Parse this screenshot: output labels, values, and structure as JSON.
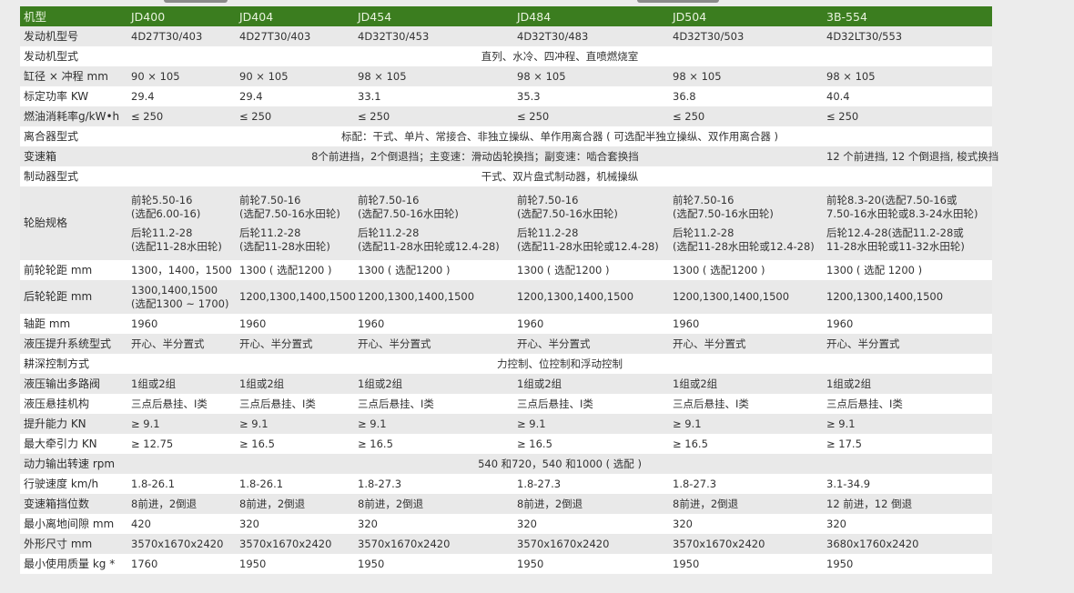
{
  "header": {
    "label": "机型",
    "models": [
      "JD400",
      "JD404",
      "JD454",
      "JD484",
      "JD504",
      "3B-554"
    ]
  },
  "colors": {
    "header_bg": "#3b7d1f",
    "row_alt": "#e9e9e9",
    "row": "#ffffff",
    "page_bg": "#ececec"
  },
  "rows": [
    {
      "label": "发动机型号",
      "cells": [
        {
          "text": "4D27T30/403"
        },
        {
          "text": "4D27T30/403"
        },
        {
          "text": "4D32T30/453"
        },
        {
          "text": "4D32T30/483"
        },
        {
          "text": "4D32T30/503"
        },
        {
          "text": "4D32LT30/553"
        }
      ]
    },
    {
      "label": "发动机型式",
      "cells": [
        {
          "text": "直列、水冷、四冲程、直喷燃烧室",
          "span": 6
        }
      ]
    },
    {
      "label": "缸径 × 冲程 mm",
      "cells": [
        {
          "text": "90 × 105"
        },
        {
          "text": "90 × 105"
        },
        {
          "text": "98 × 105"
        },
        {
          "text": "98 × 105"
        },
        {
          "text": "98 × 105"
        },
        {
          "text": "98 × 105"
        }
      ]
    },
    {
      "label": "标定功率 KW",
      "cells": [
        {
          "text": "29.4"
        },
        {
          "text": "29.4"
        },
        {
          "text": "33.1"
        },
        {
          "text": "35.3"
        },
        {
          "text": "36.8"
        },
        {
          "text": "40.4"
        }
      ]
    },
    {
      "label": "燃油消耗率g/kW•h",
      "cells": [
        {
          "text": "≤ 250"
        },
        {
          "text": "≤ 250"
        },
        {
          "text": "≤ 250"
        },
        {
          "text": "≤ 250"
        },
        {
          "text": "≤ 250"
        },
        {
          "text": "≤ 250"
        }
      ]
    },
    {
      "label": "离合器型式",
      "cells": [
        {
          "text": "标配：干式、单片、常接合、非独立操纵、单作用离合器 ( 可选配半独立操纵、双作用离合器 )",
          "span": 6
        }
      ]
    },
    {
      "label": "变速箱",
      "cells": [
        {
          "text": "8个前进挡，2个倒退挡；主变速：滑动齿轮换挡；副变速：啮合套换挡",
          "span": 5
        },
        {
          "text": "12 个前进挡, 12 个倒退挡, 梭式换挡"
        }
      ]
    },
    {
      "label": "制动器型式",
      "cells": [
        {
          "text": "干式、双片盘式制动器，机械操纵",
          "span": 6
        }
      ]
    },
    {
      "label": "轮胎规格",
      "cells": [
        {
          "lines": [
            "前轮5.50-16",
            "(选配6.00-16)",
            "后轮11.2-28",
            "(选配11-28水田轮)"
          ]
        },
        {
          "lines": [
            "前轮7.50-16",
            "(选配7.50-16水田轮)",
            "后轮11.2-28",
            "(选配11-28水田轮)"
          ]
        },
        {
          "lines": [
            "前轮7.50-16",
            "(选配7.50-16水田轮)",
            "后轮11.2-28",
            "(选配11-28水田轮或12.4-28)"
          ]
        },
        {
          "lines": [
            "前轮7.50-16",
            "(选配7.50-16水田轮)",
            "后轮11.2-28",
            "(选配11-28水田轮或12.4-28)"
          ]
        },
        {
          "lines": [
            "前轮7.50-16",
            "(选配7.50-16水田轮)",
            "后轮11.2-28",
            "(选配11-28水田轮或12.4-28)"
          ]
        },
        {
          "lines": [
            "前轮8.3-20(选配7.50-16或",
            "7.50-16水田轮或8.3-24水田轮)",
            "后轮12.4-28(选配11.2-28或",
            "11-28水田轮或11-32水田轮)"
          ]
        }
      ]
    },
    {
      "label": "前轮轮距 mm",
      "cells": [
        {
          "text": "1300，1400，1500"
        },
        {
          "text": "1300 ( 选配1200 )"
        },
        {
          "text": "1300 ( 选配1200 )"
        },
        {
          "text": "1300 ( 选配1200 )"
        },
        {
          "text": "1300 ( 选配1200 )"
        },
        {
          "text": "1300 ( 选配 1200 )"
        }
      ]
    },
    {
      "label": "后轮轮距 mm",
      "cells": [
        {
          "lines": [
            "1300,1400,1500",
            "(选配1300 ~ 1700)"
          ]
        },
        {
          "text": "1200,1300,1400,1500"
        },
        {
          "text": "1200,1300,1400,1500"
        },
        {
          "text": "1200,1300,1400,1500"
        },
        {
          "text": "1200,1300,1400,1500"
        },
        {
          "text": "1200,1300,1400,1500"
        }
      ]
    },
    {
      "label": "轴距 mm",
      "cells": [
        {
          "text": "1960"
        },
        {
          "text": "1960"
        },
        {
          "text": "1960"
        },
        {
          "text": "1960"
        },
        {
          "text": "1960"
        },
        {
          "text": "1960"
        }
      ]
    },
    {
      "label": "液压提升系统型式",
      "cells": [
        {
          "text": "开心、半分置式"
        },
        {
          "text": "开心、半分置式"
        },
        {
          "text": "开心、半分置式"
        },
        {
          "text": "开心、半分置式"
        },
        {
          "text": "开心、半分置式"
        },
        {
          "text": "开心、半分置式"
        }
      ]
    },
    {
      "label": "耕深控制方式",
      "cells": [
        {
          "text": "力控制、位控制和浮动控制",
          "span": 6
        }
      ]
    },
    {
      "label": "液压输出多路阀",
      "cells": [
        {
          "text": "1组或2组"
        },
        {
          "text": "1组或2组"
        },
        {
          "text": "1组或2组"
        },
        {
          "text": "1组或2组"
        },
        {
          "text": "1组或2组"
        },
        {
          "text": "1组或2组"
        }
      ]
    },
    {
      "label": "液压悬挂机构",
      "cells": [
        {
          "text": "三点后悬挂、Ⅰ类"
        },
        {
          "text": "三点后悬挂、Ⅰ类"
        },
        {
          "text": "三点后悬挂、Ⅰ类"
        },
        {
          "text": "三点后悬挂、Ⅰ类"
        },
        {
          "text": "三点后悬挂、Ⅰ类"
        },
        {
          "text": "三点后悬挂、Ⅰ类"
        }
      ]
    },
    {
      "label": "提升能力 KN",
      "cells": [
        {
          "text": "≥ 9.1"
        },
        {
          "text": "≥ 9.1"
        },
        {
          "text": "≥ 9.1"
        },
        {
          "text": "≥ 9.1"
        },
        {
          "text": "≥ 9.1"
        },
        {
          "text": "≥ 9.1"
        }
      ]
    },
    {
      "label": "最大牵引力 KN",
      "cells": [
        {
          "text": "≥ 12.75"
        },
        {
          "text": "≥ 16.5"
        },
        {
          "text": "≥ 16.5"
        },
        {
          "text": "≥ 16.5"
        },
        {
          "text": "≥ 16.5"
        },
        {
          "text": "≥ 17.5"
        }
      ]
    },
    {
      "label": "动力输出转速 rpm",
      "cells": [
        {
          "text": "540 和720，540 和1000 ( 选配 )",
          "span": 6
        }
      ]
    },
    {
      "label": "行驶速度 km/h",
      "cells": [
        {
          "text": "1.8-26.1"
        },
        {
          "text": "1.8-26.1"
        },
        {
          "text": "1.8-27.3"
        },
        {
          "text": "1.8-27.3"
        },
        {
          "text": "1.8-27.3"
        },
        {
          "text": "3.1-34.9"
        }
      ]
    },
    {
      "label": "变速箱挡位数",
      "cells": [
        {
          "text": "8前进，2倒退"
        },
        {
          "text": "8前进，2倒退"
        },
        {
          "text": "8前进，2倒退"
        },
        {
          "text": "8前进，2倒退"
        },
        {
          "text": "8前进，2倒退"
        },
        {
          "text": "12 前进，12 倒退"
        }
      ]
    },
    {
      "label": "最小离地间隙 mm",
      "cells": [
        {
          "text": "420"
        },
        {
          "text": "320"
        },
        {
          "text": "320"
        },
        {
          "text": "320"
        },
        {
          "text": "320"
        },
        {
          "text": "320"
        }
      ]
    },
    {
      "label": "外形尺寸 mm",
      "cells": [
        {
          "text": "3570x1670x2420"
        },
        {
          "text": "3570x1670x2420"
        },
        {
          "text": "3570x1670x2420"
        },
        {
          "text": "3570x1670x2420"
        },
        {
          "text": "3570x1670x2420"
        },
        {
          "text": "3680x1760x2420"
        }
      ]
    },
    {
      "label": "最小使用质量 kg *",
      "cells": [
        {
          "text": "1760"
        },
        {
          "text": "1950"
        },
        {
          "text": "1950"
        },
        {
          "text": "1950"
        },
        {
          "text": "1950"
        },
        {
          "text": "1950"
        }
      ]
    }
  ]
}
